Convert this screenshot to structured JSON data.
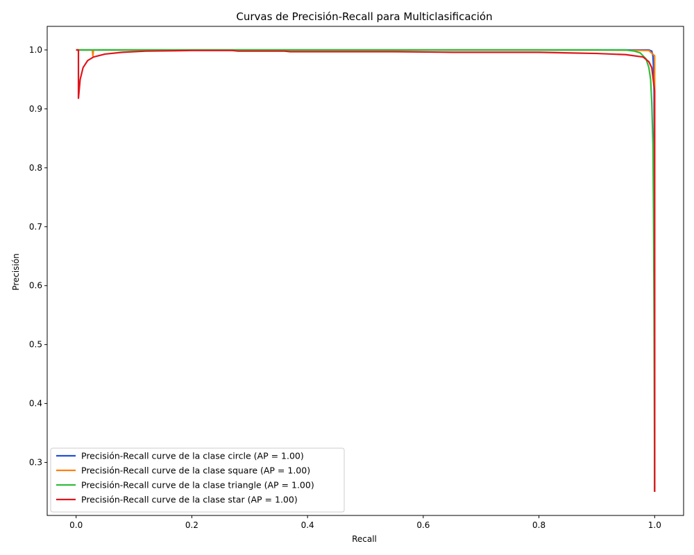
{
  "chart_data": {
    "type": "line",
    "title": "Curvas de Precisión-Recall para Multiclasificación",
    "xlabel": "Recall",
    "ylabel": "Precisión",
    "xlim": [
      -0.05,
      1.05
    ],
    "ylim": [
      0.21,
      1.04
    ],
    "xticks": [
      0.0,
      0.2,
      0.4,
      0.6,
      0.8,
      1.0
    ],
    "xtick_labels": [
      "0.0",
      "0.2",
      "0.4",
      "0.6",
      "0.8",
      "1.0"
    ],
    "yticks": [
      0.3,
      0.4,
      0.5,
      0.6,
      0.7,
      0.8,
      0.9,
      1.0
    ],
    "ytick_labels": [
      "0.3",
      "0.4",
      "0.5",
      "0.6",
      "0.7",
      "0.8",
      "0.9",
      "1.0"
    ],
    "grid": false,
    "legend_position": "lower-left",
    "series": [
      {
        "name": "Precisión-Recall curve de la clase circle (AP = 1.00)",
        "color": "#1f4fd8",
        "x": [
          0.0,
          0.9,
          0.99,
          0.995,
          0.997,
          0.998,
          0.999,
          1.0,
          1.0
        ],
        "y": [
          1.0,
          1.0,
          1.0,
          0.998,
          0.99,
          0.97,
          0.93,
          0.5,
          0.25
        ]
      },
      {
        "name": "Precisión-Recall curve de la clase square (AP = 1.00)",
        "color": "#ff7f0e",
        "x": [
          0.0,
          0.028,
          0.029,
          0.03,
          0.5,
          0.9,
          0.99,
          1.0,
          1.0,
          1.0
        ],
        "y": [
          1.0,
          1.0,
          0.99,
          1.0,
          1.0,
          1.0,
          0.999,
          0.99,
          0.96,
          0.25
        ]
      },
      {
        "name": "Precisión-Recall curve de la clase triangle (AP = 1.00)",
        "color": "#2ebd3a",
        "x": [
          0.0,
          0.5,
          0.95,
          0.965,
          0.975,
          0.985,
          0.99,
          0.993,
          0.995,
          0.997,
          0.998,
          0.999,
          1.0
        ],
        "y": [
          1.0,
          1.0,
          1.0,
          0.998,
          0.995,
          0.985,
          0.97,
          0.95,
          0.91,
          0.84,
          0.72,
          0.55,
          0.25
        ]
      },
      {
        "name": "Precisión-Recall curve de la clase star (AP = 1.00)",
        "color": "#e0141c",
        "x": [
          0.0,
          0.004,
          0.004,
          0.007,
          0.012,
          0.02,
          0.03,
          0.05,
          0.08,
          0.12,
          0.2,
          0.27,
          0.28,
          0.36,
          0.37,
          0.55,
          0.65,
          0.7,
          0.8,
          0.85,
          0.9,
          0.95,
          0.98,
          0.99,
          0.995,
          1.0,
          1.0
        ],
        "y": [
          1.0,
          1.0,
          0.918,
          0.95,
          0.97,
          0.982,
          0.988,
          0.993,
          0.996,
          0.998,
          0.999,
          0.999,
          0.998,
          0.998,
          0.997,
          0.997,
          0.996,
          0.996,
          0.996,
          0.995,
          0.994,
          0.992,
          0.988,
          0.98,
          0.97,
          0.93,
          0.25
        ]
      }
    ]
  }
}
